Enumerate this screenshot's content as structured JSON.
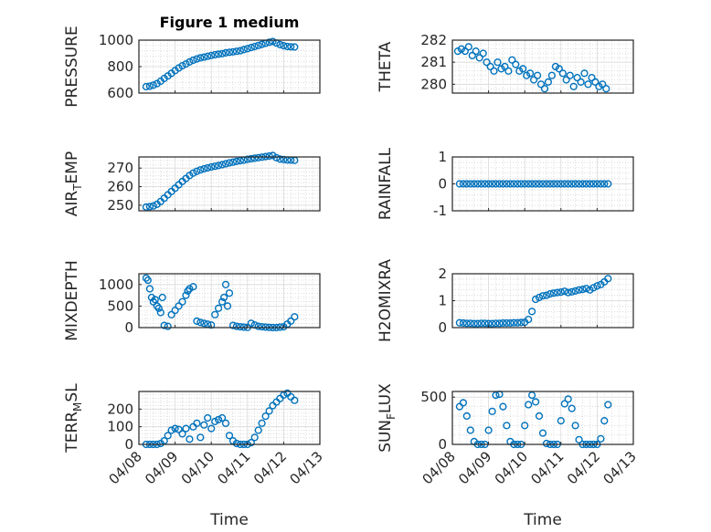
{
  "title": "Figure 1 medium",
  "xlabel": "Time",
  "x_ticks": [
    "04/08",
    "04/09",
    "04/10",
    "04/11",
    "04/12",
    "04/13"
  ],
  "marker_color": "#0072bd",
  "chart_data": [
    {
      "type": "scatter",
      "name": "pressure",
      "ylabel": "PRESSURE",
      "ylim": [
        600,
        1000
      ],
      "yticks": [
        600,
        800,
        1000
      ],
      "x": [
        0.2,
        0.3,
        0.4,
        0.5,
        0.6,
        0.7,
        0.8,
        0.9,
        1.0,
        1.1,
        1.2,
        1.3,
        1.4,
        1.5,
        1.6,
        1.7,
        1.8,
        1.9,
        2.0,
        2.1,
        2.2,
        2.3,
        2.4,
        2.5,
        2.6,
        2.7,
        2.8,
        2.9,
        3.0,
        3.1,
        3.2,
        3.3,
        3.4,
        3.5,
        3.6,
        3.7,
        3.8,
        3.9,
        4.0,
        4.1,
        4.2,
        4.3
      ],
      "values": [
        648,
        652,
        660,
        672,
        690,
        710,
        730,
        750,
        770,
        790,
        806,
        820,
        835,
        848,
        858,
        866,
        872,
        878,
        884,
        890,
        894,
        898,
        904,
        908,
        912,
        916,
        920,
        928,
        936,
        944,
        952,
        960,
        968,
        976,
        984,
        990,
        978,
        966,
        958,
        952,
        950,
        948
      ]
    },
    {
      "type": "scatter",
      "name": "theta",
      "ylabel": "THETA",
      "ylim": [
        279.6,
        282
      ],
      "yticks": [
        280,
        281,
        282
      ],
      "x": [
        0.15,
        0.25,
        0.35,
        0.45,
        0.55,
        0.65,
        0.75,
        0.85,
        0.95,
        1.05,
        1.15,
        1.25,
        1.35,
        1.45,
        1.55,
        1.65,
        1.75,
        1.85,
        1.95,
        2.05,
        2.15,
        2.25,
        2.35,
        2.45,
        2.55,
        2.65,
        2.75,
        2.85,
        2.95,
        3.05,
        3.15,
        3.25,
        3.35,
        3.45,
        3.55,
        3.65,
        3.75,
        3.85,
        3.95,
        4.05,
        4.15,
        4.25
      ],
      "values": [
        281.5,
        281.6,
        281.5,
        281.7,
        281.3,
        281.5,
        281.2,
        281.4,
        281.0,
        280.8,
        280.6,
        281.0,
        280.7,
        280.8,
        280.6,
        281.1,
        280.9,
        280.6,
        280.7,
        280.4,
        280.5,
        280.2,
        280.4,
        280.0,
        279.8,
        280.1,
        280.4,
        280.8,
        280.7,
        280.5,
        280.2,
        280.4,
        279.9,
        280.3,
        280.1,
        280.5,
        280.0,
        280.3,
        280.1,
        279.9,
        280.0,
        279.8
      ]
    },
    {
      "type": "scatter",
      "name": "air_temp",
      "ylabel": "AIR",
      "ylabel_sub": "T",
      "ylabel_tail": "EMP",
      "ylim": [
        247,
        276
      ],
      "yticks": [
        250,
        260,
        270
      ],
      "x": [
        0.2,
        0.3,
        0.4,
        0.5,
        0.6,
        0.7,
        0.8,
        0.9,
        1.0,
        1.1,
        1.2,
        1.3,
        1.4,
        1.5,
        1.6,
        1.7,
        1.8,
        1.9,
        2.0,
        2.1,
        2.2,
        2.3,
        2.4,
        2.5,
        2.6,
        2.7,
        2.8,
        2.9,
        3.0,
        3.1,
        3.2,
        3.3,
        3.4,
        3.5,
        3.6,
        3.7,
        3.8,
        3.9,
        4.0,
        4.1,
        4.2,
        4.3
      ],
      "values": [
        249,
        249.2,
        249.6,
        250.5,
        252,
        253.8,
        255.6,
        257.4,
        259.2,
        261,
        262.8,
        264.4,
        266,
        267.3,
        268.3,
        269,
        269.6,
        270.1,
        270.6,
        271,
        271.4,
        271.8,
        272.3,
        272.8,
        273.2,
        273.6,
        274,
        274.3,
        274.7,
        275,
        275.3,
        275.6,
        275.9,
        276.2,
        276.5,
        276.8,
        275.6,
        274.8,
        274.6,
        274.4,
        274.3,
        274.2
      ]
    },
    {
      "type": "scatter",
      "name": "rainfall",
      "ylabel": "RAINFALL",
      "ylim": [
        -1,
        1
      ],
      "yticks": [
        -1,
        0,
        1
      ],
      "x": [
        0.2,
        0.3,
        0.4,
        0.5,
        0.6,
        0.7,
        0.8,
        0.9,
        1.0,
        1.1,
        1.2,
        1.3,
        1.4,
        1.5,
        1.6,
        1.7,
        1.8,
        1.9,
        2.0,
        2.1,
        2.2,
        2.3,
        2.4,
        2.5,
        2.6,
        2.7,
        2.8,
        2.9,
        3.0,
        3.1,
        3.2,
        3.3,
        3.4,
        3.5,
        3.6,
        3.7,
        3.8,
        3.9,
        4.0,
        4.1,
        4.2,
        4.3
      ],
      "values": [
        0,
        0,
        0,
        0,
        0,
        0,
        0,
        0,
        0,
        0,
        0,
        0,
        0,
        0,
        0,
        0,
        0,
        0,
        0,
        0,
        0,
        0,
        0,
        0,
        0,
        0,
        0,
        0,
        0,
        0,
        0,
        0,
        0,
        0,
        0,
        0,
        0,
        0,
        0,
        0,
        0,
        0
      ]
    },
    {
      "type": "scatter",
      "name": "mixdepth",
      "ylabel": "MIXDEPTH",
      "ylim": [
        0,
        1250
      ],
      "yticks": [
        0,
        500,
        1000
      ],
      "x": [
        0.2,
        0.25,
        0.3,
        0.35,
        0.4,
        0.45,
        0.5,
        0.55,
        0.6,
        0.65,
        0.7,
        0.8,
        0.9,
        1.0,
        1.1,
        1.2,
        1.3,
        1.35,
        1.4,
        1.5,
        1.6,
        1.7,
        1.8,
        1.9,
        2.0,
        2.1,
        2.2,
        2.3,
        2.35,
        2.4,
        2.45,
        2.5,
        2.6,
        2.7,
        2.8,
        2.9,
        3.0,
        3.1,
        3.2,
        3.3,
        3.4,
        3.5,
        3.6,
        3.7,
        3.8,
        3.9,
        4.0,
        4.1,
        4.2,
        4.3
      ],
      "values": [
        1150,
        1100,
        900,
        700,
        600,
        650,
        500,
        450,
        350,
        700,
        50,
        30,
        300,
        400,
        500,
        600,
        750,
        850,
        900,
        950,
        150,
        120,
        100,
        80,
        60,
        300,
        450,
        600,
        700,
        1000,
        500,
        800,
        50,
        30,
        20,
        10,
        5,
        100,
        60,
        30,
        20,
        10,
        5,
        0,
        0,
        10,
        20,
        80,
        150,
        250
      ]
    },
    {
      "type": "scatter",
      "name": "h2omixra",
      "ylabel": "H2OMIXRA",
      "ylim": [
        0,
        2
      ],
      "yticks": [
        0,
        1,
        2
      ],
      "x": [
        0.2,
        0.3,
        0.4,
        0.5,
        0.6,
        0.7,
        0.8,
        0.9,
        1.0,
        1.1,
        1.2,
        1.3,
        1.4,
        1.5,
        1.6,
        1.7,
        1.8,
        1.9,
        2.0,
        2.1,
        2.2,
        2.3,
        2.4,
        2.5,
        2.6,
        2.7,
        2.8,
        2.9,
        3.0,
        3.1,
        3.2,
        3.3,
        3.4,
        3.5,
        3.6,
        3.7,
        3.8,
        3.9,
        4.0,
        4.1,
        4.2,
        4.3
      ],
      "values": [
        0.18,
        0.17,
        0.16,
        0.16,
        0.15,
        0.15,
        0.16,
        0.16,
        0.15,
        0.15,
        0.16,
        0.16,
        0.17,
        0.17,
        0.17,
        0.18,
        0.18,
        0.19,
        0.2,
        0.3,
        0.6,
        1.05,
        1.12,
        1.18,
        1.2,
        1.25,
        1.28,
        1.3,
        1.32,
        1.35,
        1.3,
        1.33,
        1.36,
        1.4,
        1.42,
        1.45,
        1.4,
        1.48,
        1.55,
        1.6,
        1.7,
        1.82
      ]
    },
    {
      "type": "scatter",
      "name": "terr_msl",
      "ylabel": "TERR",
      "ylabel_sub": "M",
      "ylabel_tail": "SL",
      "ylim": [
        0,
        300
      ],
      "yticks": [
        0,
        100,
        200
      ],
      "x": [
        0.2,
        0.3,
        0.4,
        0.5,
        0.6,
        0.7,
        0.8,
        0.9,
        1.0,
        1.1,
        1.2,
        1.3,
        1.4,
        1.5,
        1.6,
        1.7,
        1.8,
        1.9,
        2.0,
        2.1,
        2.2,
        2.3,
        2.4,
        2.5,
        2.6,
        2.7,
        2.8,
        2.9,
        3.0,
        3.1,
        3.2,
        3.3,
        3.4,
        3.5,
        3.6,
        3.7,
        3.8,
        3.9,
        4.0,
        4.1,
        4.2,
        4.3
      ],
      "values": [
        0,
        0,
        0,
        0,
        5,
        20,
        50,
        80,
        90,
        85,
        60,
        90,
        30,
        100,
        120,
        40,
        110,
        150,
        90,
        130,
        140,
        150,
        120,
        50,
        20,
        5,
        0,
        0,
        0,
        10,
        40,
        80,
        120,
        160,
        190,
        220,
        240,
        260,
        280,
        290,
        270,
        250
      ]
    },
    {
      "type": "scatter",
      "name": "sun_flux",
      "ylabel": "SUN",
      "ylabel_sub": "F",
      "ylabel_tail": "LUX",
      "ylim": [
        0,
        560
      ],
      "yticks": [
        0,
        500
      ],
      "x": [
        0.2,
        0.3,
        0.4,
        0.5,
        0.6,
        0.7,
        0.8,
        0.9,
        1.0,
        1.1,
        1.2,
        1.3,
        1.4,
        1.5,
        1.6,
        1.7,
        1.8,
        1.9,
        2.0,
        2.1,
        2.2,
        2.3,
        2.4,
        2.5,
        2.6,
        2.7,
        2.8,
        2.9,
        3.0,
        3.1,
        3.2,
        3.3,
        3.4,
        3.5,
        3.6,
        3.7,
        3.8,
        3.9,
        4.0,
        4.1,
        4.2,
        4.3
      ],
      "values": [
        400,
        440,
        300,
        150,
        30,
        0,
        0,
        0,
        150,
        350,
        520,
        530,
        400,
        200,
        30,
        0,
        0,
        0,
        200,
        420,
        520,
        450,
        300,
        120,
        10,
        0,
        0,
        0,
        250,
        430,
        480,
        380,
        200,
        50,
        0,
        0,
        0,
        0,
        0,
        60,
        250,
        420
      ]
    }
  ]
}
